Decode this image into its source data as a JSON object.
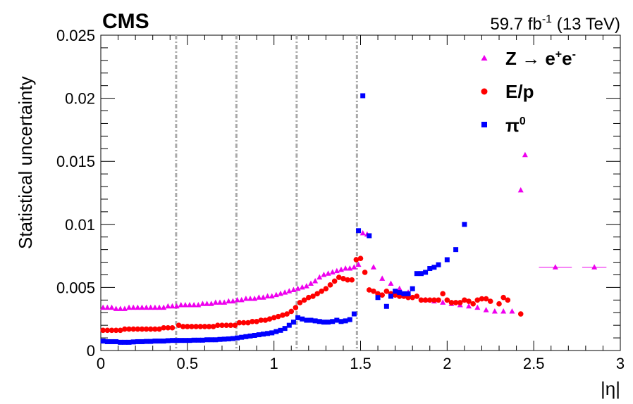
{
  "header": {
    "experiment": "CMS",
    "luminosity": "59.7 fb",
    "luminosity_exp": "-1",
    "energy": " (13 TeV)"
  },
  "legend": {
    "z": {
      "prefix": "Z ",
      "arrow": "→",
      "e1": " e",
      "plus": "+",
      "e2": "e",
      "minus": "-"
    },
    "ep": "E/p",
    "pi0": {
      "base": "π",
      "sup": "0"
    }
  },
  "colors": {
    "z": "#ee00ee",
    "ep": "#ff0000",
    "pi0": "#0000ff",
    "boundary": "#aaaaaa"
  },
  "chart_data": {
    "type": "scatter",
    "xlabel": "|η|",
    "ylabel": "Statistical uncertainty",
    "xlim": [
      0,
      3
    ],
    "ylim": [
      0,
      0.025
    ],
    "x_ticks": [
      0,
      0.5,
      1,
      1.5,
      2,
      2.5,
      3
    ],
    "x_tick_labels": [
      "0",
      "0.5",
      "1",
      "1.5",
      "2",
      "2.5",
      "3"
    ],
    "y_ticks": [
      0,
      0.005,
      0.01,
      0.015,
      0.02,
      0.025
    ],
    "y_tick_labels": [
      "0",
      "0.005",
      "0.01",
      "0.015",
      "0.02",
      "0.025"
    ],
    "grid": false,
    "legend_position": "top-right",
    "boundaries": [
      0.435,
      0.783,
      1.131,
      1.479
    ],
    "series": [
      {
        "name": "Z → e+e-",
        "marker": "triangle",
        "points": [
          [
            0.013,
            0.0034
          ],
          [
            0.038,
            0.0034
          ],
          [
            0.063,
            0.0034
          ],
          [
            0.088,
            0.0033
          ],
          [
            0.113,
            0.0033
          ],
          [
            0.138,
            0.0033
          ],
          [
            0.163,
            0.0034
          ],
          [
            0.188,
            0.0034
          ],
          [
            0.213,
            0.0034
          ],
          [
            0.238,
            0.0034
          ],
          [
            0.263,
            0.0034
          ],
          [
            0.288,
            0.0034
          ],
          [
            0.313,
            0.0034
          ],
          [
            0.338,
            0.0034
          ],
          [
            0.363,
            0.0034
          ],
          [
            0.388,
            0.0035
          ],
          [
            0.413,
            0.0035
          ],
          [
            0.438,
            0.0035
          ],
          [
            0.463,
            0.0036
          ],
          [
            0.488,
            0.0036
          ],
          [
            0.513,
            0.0036
          ],
          [
            0.538,
            0.0036
          ],
          [
            0.563,
            0.0036
          ],
          [
            0.588,
            0.0037
          ],
          [
            0.613,
            0.0037
          ],
          [
            0.638,
            0.0037
          ],
          [
            0.663,
            0.0038
          ],
          [
            0.688,
            0.0038
          ],
          [
            0.713,
            0.0038
          ],
          [
            0.738,
            0.0039
          ],
          [
            0.763,
            0.0039
          ],
          [
            0.788,
            0.004
          ],
          [
            0.813,
            0.004
          ],
          [
            0.838,
            0.0041
          ],
          [
            0.863,
            0.0041
          ],
          [
            0.888,
            0.0041
          ],
          [
            0.913,
            0.0042
          ],
          [
            0.938,
            0.0042
          ],
          [
            0.963,
            0.0043
          ],
          [
            0.988,
            0.0043
          ],
          [
            1.013,
            0.0044
          ],
          [
            1.038,
            0.0045
          ],
          [
            1.063,
            0.0046
          ],
          [
            1.088,
            0.0047
          ],
          [
            1.113,
            0.0048
          ],
          [
            1.138,
            0.0049
          ],
          [
            1.163,
            0.005
          ],
          [
            1.188,
            0.0051
          ],
          [
            1.213,
            0.0053
          ],
          [
            1.238,
            0.0055
          ],
          [
            1.263,
            0.0058
          ],
          [
            1.288,
            0.006
          ],
          [
            1.313,
            0.0061
          ],
          [
            1.338,
            0.0062
          ],
          [
            1.363,
            0.0063
          ],
          [
            1.388,
            0.0064
          ],
          [
            1.413,
            0.0065
          ],
          [
            1.438,
            0.0065
          ],
          [
            1.463,
            0.0066
          ],
          [
            1.488,
            0.0068
          ],
          [
            1.513,
            0.0093
          ],
          [
            1.538,
            0.0092
          ],
          [
            1.575,
            0.0066
          ],
          [
            1.625,
            0.0057
          ],
          [
            1.675,
            0.0053
          ],
          [
            1.725,
            0.0049
          ],
          [
            1.775,
            0.0046
          ],
          [
            1.825,
            0.0043
          ],
          [
            1.875,
            0.004
          ],
          [
            1.925,
            0.0039
          ],
          [
            1.975,
            0.0038
          ],
          [
            2.025,
            0.0037
          ],
          [
            2.075,
            0.0036
          ],
          [
            2.125,
            0.0035
          ],
          [
            2.175,
            0.0034
          ],
          [
            2.225,
            0.0032
          ],
          [
            2.275,
            0.0031
          ],
          [
            2.325,
            0.0031
          ],
          [
            2.375,
            0.0031
          ],
          [
            2.425,
            0.0127
          ],
          [
            2.45,
            0.0155
          ],
          [
            2.625,
            0.0066
          ],
          [
            2.85,
            0.0066
          ]
        ],
        "x_errors": [
          {
            "x": 2.625,
            "low": 2.53,
            "high": 2.72
          },
          {
            "x": 2.85,
            "low": 2.78,
            "high": 2.92
          }
        ]
      },
      {
        "name": "E/p",
        "marker": "circle",
        "points": [
          [
            0.013,
            0.0016
          ],
          [
            0.038,
            0.0016
          ],
          [
            0.063,
            0.0016
          ],
          [
            0.088,
            0.0016
          ],
          [
            0.113,
            0.0016
          ],
          [
            0.138,
            0.0017
          ],
          [
            0.163,
            0.0017
          ],
          [
            0.188,
            0.0017
          ],
          [
            0.213,
            0.0017
          ],
          [
            0.238,
            0.0017
          ],
          [
            0.263,
            0.0017
          ],
          [
            0.288,
            0.0017
          ],
          [
            0.313,
            0.0017
          ],
          [
            0.338,
            0.0017
          ],
          [
            0.363,
            0.0018
          ],
          [
            0.388,
            0.0018
          ],
          [
            0.413,
            0.0018
          ],
          [
            0.45,
            0.002
          ],
          [
            0.475,
            0.0019
          ],
          [
            0.5,
            0.0019
          ],
          [
            0.525,
            0.0019
          ],
          [
            0.55,
            0.0019
          ],
          [
            0.575,
            0.0019
          ],
          [
            0.6,
            0.0019
          ],
          [
            0.625,
            0.0019
          ],
          [
            0.65,
            0.0019
          ],
          [
            0.675,
            0.002
          ],
          [
            0.7,
            0.002
          ],
          [
            0.725,
            0.002
          ],
          [
            0.75,
            0.002
          ],
          [
            0.775,
            0.002
          ],
          [
            0.8,
            0.0022
          ],
          [
            0.825,
            0.0022
          ],
          [
            0.85,
            0.0022
          ],
          [
            0.875,
            0.0023
          ],
          [
            0.9,
            0.0023
          ],
          [
            0.925,
            0.0024
          ],
          [
            0.95,
            0.0024
          ],
          [
            0.975,
            0.0025
          ],
          [
            1.0,
            0.0026
          ],
          [
            1.025,
            0.0027
          ],
          [
            1.05,
            0.0028
          ],
          [
            1.075,
            0.0029
          ],
          [
            1.1,
            0.0031
          ],
          [
            1.125,
            0.0034
          ],
          [
            1.15,
            0.0038
          ],
          [
            1.175,
            0.004
          ],
          [
            1.2,
            0.0042
          ],
          [
            1.225,
            0.0043
          ],
          [
            1.25,
            0.0045
          ],
          [
            1.275,
            0.0047
          ],
          [
            1.3,
            0.0049
          ],
          [
            1.325,
            0.0052
          ],
          [
            1.35,
            0.0055
          ],
          [
            1.375,
            0.0058
          ],
          [
            1.4,
            0.0057
          ],
          [
            1.425,
            0.0056
          ],
          [
            1.45,
            0.0056
          ],
          [
            1.475,
            0.0072
          ],
          [
            1.5,
            0.0073
          ],
          [
            1.525,
            0.0062
          ],
          [
            1.55,
            0.0048
          ],
          [
            1.575,
            0.0047
          ],
          [
            1.6,
            0.0045
          ],
          [
            1.625,
            0.0044
          ],
          [
            1.65,
            0.0047
          ],
          [
            1.675,
            0.0045
          ],
          [
            1.7,
            0.0044
          ],
          [
            1.725,
            0.0043
          ],
          [
            1.75,
            0.0043
          ],
          [
            1.775,
            0.0042
          ],
          [
            1.8,
            0.0042
          ],
          [
            1.825,
            0.0043
          ],
          [
            1.85,
            0.004
          ],
          [
            1.875,
            0.004
          ],
          [
            1.9,
            0.004
          ],
          [
            1.925,
            0.004
          ],
          [
            1.95,
            0.004
          ],
          [
            1.975,
            0.0045
          ],
          [
            2.0,
            0.004
          ],
          [
            2.025,
            0.0038
          ],
          [
            2.05,
            0.0038
          ],
          [
            2.075,
            0.0038
          ],
          [
            2.1,
            0.004
          ],
          [
            2.125,
            0.0039
          ],
          [
            2.15,
            0.0037
          ],
          [
            2.175,
            0.004
          ],
          [
            2.2,
            0.0041
          ],
          [
            2.225,
            0.0041
          ],
          [
            2.25,
            0.0039
          ],
          [
            2.3,
            0.0037
          ],
          [
            2.325,
            0.0042
          ],
          [
            2.35,
            0.004
          ],
          [
            2.425,
            0.0029
          ]
        ]
      },
      {
        "name": "π0",
        "marker": "square",
        "points": [
          [
            0.013,
            0.00075
          ],
          [
            0.038,
            0.0007
          ],
          [
            0.063,
            0.0007
          ],
          [
            0.088,
            0.0007
          ],
          [
            0.113,
            0.00065
          ],
          [
            0.138,
            0.00065
          ],
          [
            0.163,
            0.00065
          ],
          [
            0.188,
            0.00068
          ],
          [
            0.213,
            0.0007
          ],
          [
            0.238,
            0.0007
          ],
          [
            0.263,
            0.00072
          ],
          [
            0.288,
            0.00072
          ],
          [
            0.313,
            0.00075
          ],
          [
            0.338,
            0.00075
          ],
          [
            0.363,
            0.00075
          ],
          [
            0.388,
            0.00078
          ],
          [
            0.413,
            0.0008
          ],
          [
            0.438,
            0.0008
          ],
          [
            0.463,
            0.0008
          ],
          [
            0.488,
            0.0008
          ],
          [
            0.513,
            0.0008
          ],
          [
            0.538,
            0.00082
          ],
          [
            0.563,
            0.00082
          ],
          [
            0.588,
            0.00082
          ],
          [
            0.613,
            0.00085
          ],
          [
            0.638,
            0.00085
          ],
          [
            0.663,
            0.00085
          ],
          [
            0.688,
            0.00088
          ],
          [
            0.713,
            0.0009
          ],
          [
            0.738,
            0.00092
          ],
          [
            0.763,
            0.00095
          ],
          [
            0.788,
            0.001
          ],
          [
            0.813,
            0.00105
          ],
          [
            0.838,
            0.0011
          ],
          [
            0.863,
            0.00115
          ],
          [
            0.888,
            0.0012
          ],
          [
            0.913,
            0.00125
          ],
          [
            0.938,
            0.0013
          ],
          [
            0.963,
            0.00135
          ],
          [
            0.988,
            0.0014
          ],
          [
            1.013,
            0.0015
          ],
          [
            1.038,
            0.0016
          ],
          [
            1.063,
            0.00175
          ],
          [
            1.088,
            0.002
          ],
          [
            1.113,
            0.00225
          ],
          [
            1.138,
            0.0026
          ],
          [
            1.163,
            0.0025
          ],
          [
            1.188,
            0.0024
          ],
          [
            1.213,
            0.0024
          ],
          [
            1.238,
            0.00235
          ],
          [
            1.263,
            0.0023
          ],
          [
            1.288,
            0.00225
          ],
          [
            1.313,
            0.00225
          ],
          [
            1.338,
            0.0023
          ],
          [
            1.363,
            0.0024
          ],
          [
            1.388,
            0.0023
          ],
          [
            1.413,
            0.00235
          ],
          [
            1.438,
            0.00245
          ],
          [
            1.463,
            0.0029
          ],
          [
            1.488,
            0.0095
          ],
          [
            1.513,
            0.0202
          ],
          [
            1.55,
            0.0091
          ],
          [
            1.6,
            0.0042
          ],
          [
            1.65,
            0.0035
          ],
          [
            1.675,
            0.0043
          ],
          [
            1.7,
            0.0047
          ],
          [
            1.725,
            0.0046
          ],
          [
            1.75,
            0.0045
          ],
          [
            1.775,
            0.0045
          ],
          [
            1.8,
            0.0049
          ],
          [
            1.825,
            0.0061
          ],
          [
            1.85,
            0.0061
          ],
          [
            1.875,
            0.0062
          ],
          [
            1.9,
            0.0065
          ],
          [
            1.925,
            0.0066
          ],
          [
            1.95,
            0.0068
          ],
          [
            2.0,
            0.0072
          ],
          [
            2.05,
            0.008
          ],
          [
            2.1,
            0.01
          ]
        ]
      }
    ]
  }
}
